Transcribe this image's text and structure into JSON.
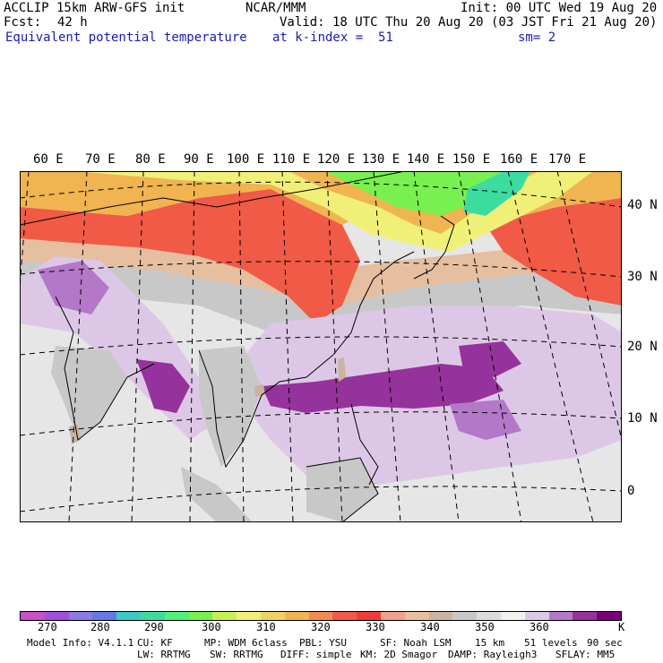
{
  "header": {
    "title": "ACCLIP 15km ARW-GFS init",
    "center": "NCAR/MMM",
    "init": "Init: 00 UTC Wed 19 Aug 20",
    "fcst_label": "Fcst:",
    "fcst_value": "42 h",
    "valid": "Valid: 18 UTC Thu 20 Aug 20 (03 JST Fri 21 Aug 20)",
    "field": "Equivalent potential temperature",
    "level": "at k-index =  51",
    "smoothing": "sm= 2"
  },
  "map": {
    "lon_labels": [
      "60 E",
      "70 E",
      "80 E",
      "90 E",
      "100 E",
      "110 E",
      "120 E",
      "130 E",
      "140 E",
      "150 E",
      "160 E",
      "170 E"
    ],
    "lat_labels": [
      "40 N",
      "30 N",
      "20 N",
      "10 N",
      "0"
    ]
  },
  "colorbar": {
    "colors": [
      "#c850c8",
      "#a050dc",
      "#8c78e6",
      "#6478e6",
      "#3cc8c8",
      "#3cdca0",
      "#50f078",
      "#78f050",
      "#c8f050",
      "#f0f078",
      "#f0d264",
      "#f0b450",
      "#f08c50",
      "#f05a46",
      "#f03c3c",
      "#f0a08c",
      "#e6bea0",
      "#c8b4a0",
      "#c8c8c8",
      "#dcdcdc",
      "#f0f0f0",
      "#dcc8e6",
      "#b478c8",
      "#96329b",
      "#780078"
    ],
    "tick_labels": [
      "270",
      "280",
      "290",
      "300",
      "310",
      "320",
      "330",
      "340",
      "350",
      "360"
    ],
    "unit": "K"
  },
  "model_info": {
    "line1": [
      "Model Info: V4.1.1",
      "CU: KF",
      "MP: WDM 6class",
      "PBL: YSU",
      "SF: Noah LSM",
      "15 km",
      "51 levels",
      "90 sec"
    ],
    "line2": [
      "LW: RRTMG",
      "SW: RRTMG",
      "DIFF: simple",
      "KM: 2D Smagor",
      "DAMP: Rayleigh3",
      "SFLAY: MM5"
    ]
  }
}
